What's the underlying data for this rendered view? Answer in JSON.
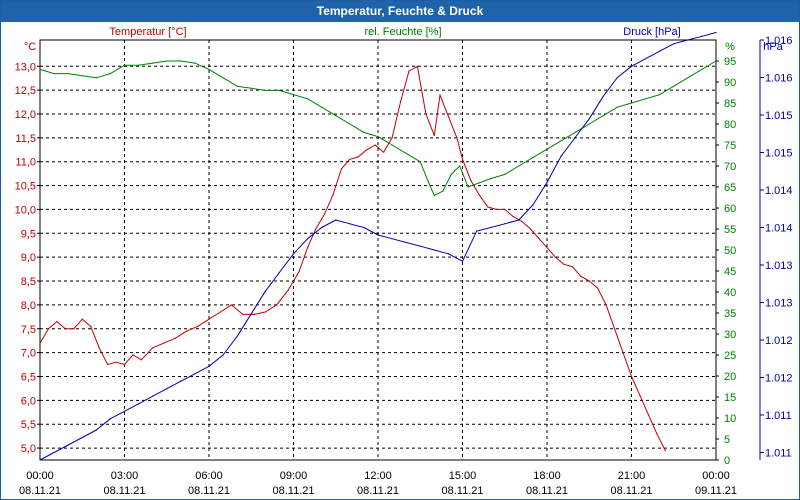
{
  "window": {
    "title": "Temperatur, Feuchte & Druck"
  },
  "colors": {
    "temperature": "#c00000",
    "humidity": "#008000",
    "pressure": "#0000b0",
    "grid": "#000000",
    "title_bg": "#1f64a8"
  },
  "chart_data": {
    "type": "line",
    "title": "Temperatur, Feuchte & Druck",
    "x_labels": [
      {
        "time": "00:00",
        "date": "08.11.21"
      },
      {
        "time": "03:00",
        "date": "08.11.21"
      },
      {
        "time": "06:00",
        "date": "08.11.21"
      },
      {
        "time": "09:00",
        "date": "08.11.21"
      },
      {
        "time": "12:00",
        "date": "08.11.21"
      },
      {
        "time": "15:00",
        "date": "08.11.21"
      },
      {
        "time": "18:00",
        "date": "08.11.21"
      },
      {
        "time": "21:00",
        "date": "08.11.21"
      },
      {
        "time": "00:00",
        "date": "09.11.21"
      }
    ],
    "x_range_hours": [
      0,
      24
    ],
    "axes": {
      "temperature": {
        "label": "Temperatur [°C]",
        "unit": "°C",
        "min": 4.75,
        "max": 13.55,
        "ticks": [
          "5,0",
          "5,5",
          "6,0",
          "6,5",
          "7,0",
          "7,5",
          "8,0",
          "8,5",
          "9,0",
          "9,5",
          "10,0",
          "10,5",
          "11,0",
          "11,5",
          "12,0",
          "12,5",
          "13,0"
        ],
        "tick_values": [
          5.0,
          5.5,
          6.0,
          6.5,
          7.0,
          7.5,
          8.0,
          8.5,
          9.0,
          9.5,
          10.0,
          10.5,
          11.0,
          11.5,
          12.0,
          12.5,
          13.0
        ]
      },
      "humidity": {
        "label": "rel. Feuchte [%]",
        "unit": "%",
        "min": 0,
        "max": 100,
        "ticks": [
          "0",
          "5",
          "10",
          "15",
          "20",
          "25",
          "30",
          "35",
          "40",
          "45",
          "50",
          "55",
          "60",
          "65",
          "70",
          "75",
          "80",
          "85",
          "90",
          "95"
        ],
        "tick_values": [
          0,
          5,
          10,
          15,
          20,
          25,
          30,
          35,
          40,
          45,
          50,
          55,
          60,
          65,
          70,
          75,
          80,
          85,
          90,
          95
        ]
      },
      "pressure": {
        "label": "Druck [hPa]",
        "unit": "hPa",
        "min": 1010.9,
        "max": 1016.5,
        "ticks": [
          "1.011",
          "1.011",
          "1.012",
          "1.012",
          "1.013",
          "1.013",
          "1.014",
          "1.014",
          "1.015",
          "1.015",
          "1.016",
          "1.016"
        ],
        "tick_values": [
          1011.0,
          1011.5,
          1012.0,
          1012.5,
          1013.0,
          1013.5,
          1014.0,
          1014.5,
          1015.0,
          1015.5,
          1016.0,
          1016.5
        ]
      }
    },
    "series": [
      {
        "name": "Temperatur [°C]",
        "axis": "temperature",
        "x": [
          0,
          0.3,
          0.6,
          0.9,
          1.2,
          1.5,
          1.8,
          2.1,
          2.4,
          2.7,
          3.0,
          3.3,
          3.6,
          4.0,
          4.4,
          4.8,
          5.2,
          5.6,
          6.0,
          6.4,
          6.8,
          7.2,
          7.6,
          8.0,
          8.4,
          8.8,
          9.2,
          9.5,
          9.8,
          10.1,
          10.4,
          10.7,
          11.0,
          11.3,
          11.6,
          11.9,
          12.2,
          12.5,
          12.8,
          13.1,
          13.4,
          13.7,
          14.0,
          14.2,
          14.5,
          14.8,
          15.0,
          15.3,
          15.6,
          15.9,
          16.2,
          16.5,
          16.8,
          17.1,
          17.4,
          17.7,
          18.0,
          18.3,
          18.6,
          18.9,
          19.2,
          19.5,
          19.8,
          20.1,
          20.4,
          20.7,
          21.0,
          21.3,
          21.6,
          21.9,
          22.2,
          22.5,
          22.8,
          23.1,
          23.4,
          23.7,
          24.0
        ],
        "values": [
          7.2,
          7.5,
          7.65,
          7.5,
          7.5,
          7.7,
          7.55,
          7.1,
          6.75,
          6.8,
          6.75,
          6.95,
          6.85,
          7.1,
          7.2,
          7.3,
          7.45,
          7.55,
          7.7,
          7.85,
          8.0,
          7.8,
          7.8,
          7.85,
          8.0,
          8.3,
          8.7,
          9.2,
          9.6,
          9.9,
          10.3,
          10.85,
          11.05,
          11.1,
          11.25,
          11.35,
          11.2,
          11.5,
          12.25,
          12.9,
          13.0,
          12.0,
          11.55,
          12.4,
          11.95,
          11.5,
          11.05,
          10.6,
          10.3,
          10.05,
          10.0,
          10.0,
          9.85,
          9.75,
          9.6,
          9.4,
          9.2,
          9.0,
          8.85,
          8.8,
          8.6,
          8.5,
          8.35,
          8.0,
          7.5,
          7.0,
          6.5,
          6.1,
          5.7,
          5.3,
          4.95,
          null,
          null,
          null,
          null,
          null,
          null
        ]
      },
      {
        "name": "rel. Feuchte [%]",
        "axis": "humidity",
        "x": [
          0,
          0.5,
          1.0,
          1.5,
          2.0,
          2.5,
          3.0,
          3.5,
          4.0,
          4.5,
          5.0,
          5.5,
          6.0,
          6.5,
          7.0,
          7.5,
          8.0,
          8.5,
          9.0,
          9.5,
          10.0,
          10.5,
          11.0,
          11.5,
          12.0,
          12.5,
          13.0,
          13.5,
          13.8,
          14.0,
          14.3,
          14.6,
          14.9,
          15.2,
          15.6,
          16.0,
          16.5,
          17.0,
          17.5,
          18.0,
          18.5,
          19.0,
          19.5,
          20.0,
          20.5,
          21.0,
          21.5,
          22.0,
          22.5,
          23.0,
          23.5,
          24.0
        ],
        "values": [
          93,
          92,
          92,
          91.5,
          91,
          92,
          94,
          94,
          94.5,
          95,
          95,
          94.5,
          93,
          91,
          89,
          88.5,
          88,
          88,
          87,
          86,
          84,
          82,
          80,
          78,
          77,
          75,
          73,
          71,
          66,
          63,
          64,
          68,
          70,
          65,
          66,
          67,
          68,
          70,
          72,
          74,
          76,
          78,
          80,
          82,
          84,
          85,
          86,
          87,
          89,
          91,
          93,
          95
        ]
      },
      {
        "name": "Druck [hPa]",
        "axis": "pressure",
        "x": [
          0,
          0.5,
          1.0,
          1.5,
          2.0,
          2.5,
          3.0,
          3.5,
          4.0,
          4.5,
          5.0,
          5.5,
          6.0,
          6.5,
          7.0,
          7.5,
          8.0,
          8.5,
          9.0,
          9.5,
          10.0,
          10.5,
          11.0,
          11.5,
          12.0,
          12.5,
          13.0,
          13.5,
          14.0,
          14.5,
          15.0,
          15.5,
          16.0,
          16.5,
          17.0,
          17.5,
          18.0,
          18.5,
          19.0,
          19.5,
          20.0,
          20.5,
          21.0,
          21.5,
          22.0,
          22.5,
          23.0,
          23.5,
          24.0
        ],
        "values": [
          1010.9,
          1011.0,
          1011.1,
          1011.2,
          1011.3,
          1011.45,
          1011.55,
          1011.65,
          1011.75,
          1011.85,
          1011.95,
          1012.05,
          1012.15,
          1012.3,
          1012.55,
          1012.85,
          1013.15,
          1013.4,
          1013.65,
          1013.85,
          1014.0,
          1014.1,
          1014.05,
          1014.0,
          1013.9,
          1013.85,
          1013.8,
          1013.75,
          1013.7,
          1013.65,
          1013.55,
          1013.95,
          1014.0,
          1014.05,
          1014.1,
          1014.3,
          1014.6,
          1014.95,
          1015.2,
          1015.45,
          1015.75,
          1016.0,
          1016.15,
          1016.25,
          1016.35,
          1016.45,
          1016.5,
          1016.55,
          1016.6
        ]
      }
    ],
    "grid": true
  }
}
